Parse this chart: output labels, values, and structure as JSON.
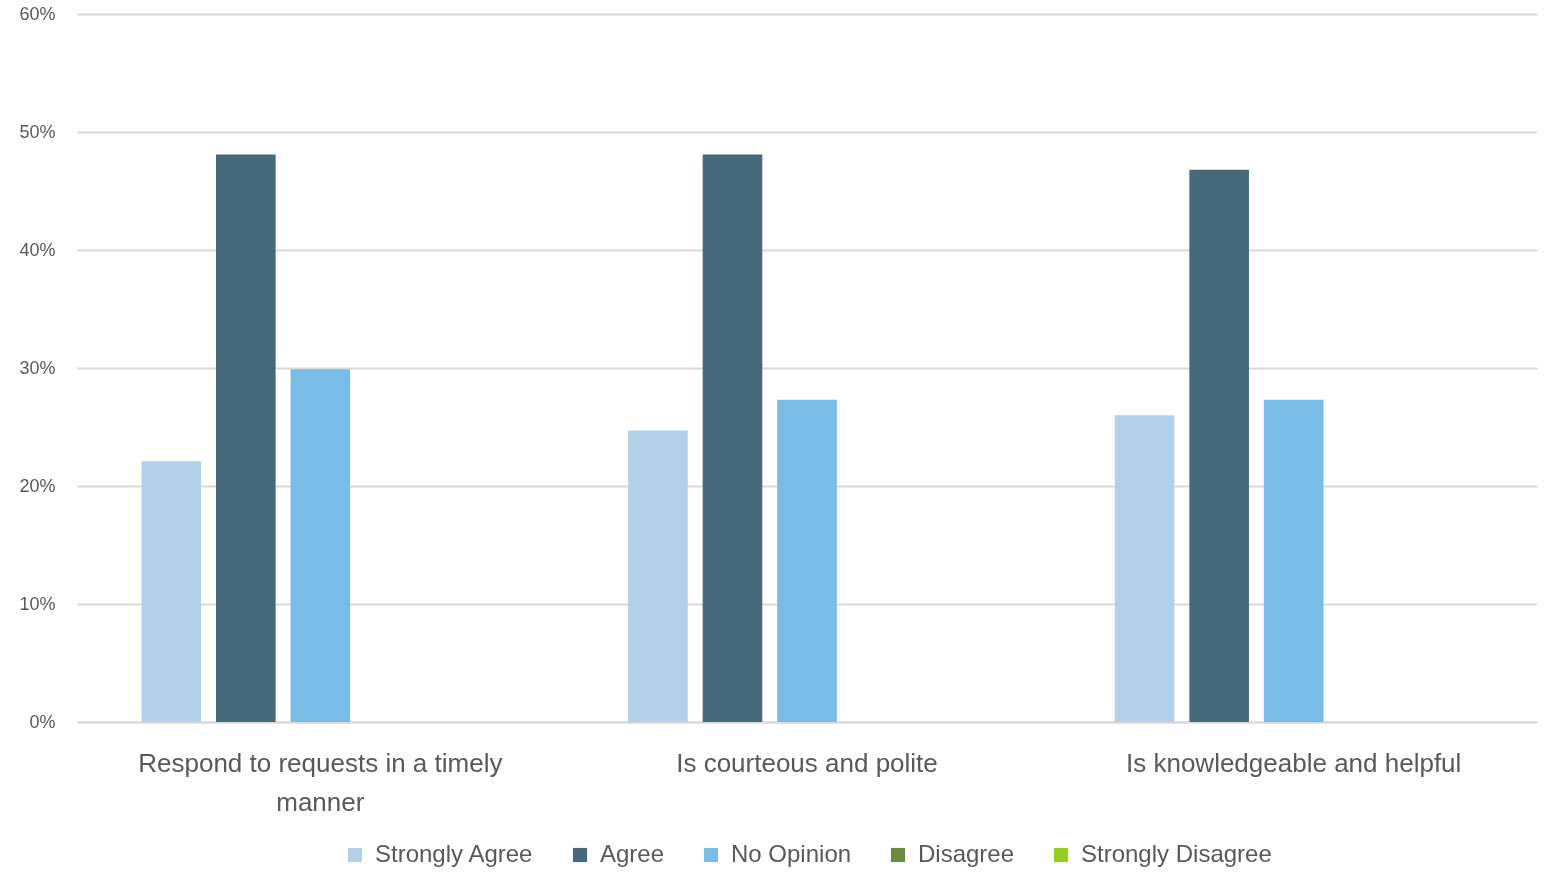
{
  "chart_data": {
    "type": "bar",
    "categories": [
      "Respond to requests in a timely manner",
      "Is courteous and polite",
      "Is knowledgeable and helpful"
    ],
    "series": [
      {
        "name": "Strongly Agree",
        "color": "#b4d0e8",
        "values": [
          22.1,
          24.7,
          26.0
        ]
      },
      {
        "name": "Agree",
        "color": "#466a7b",
        "values": [
          48.1,
          48.1,
          46.8
        ]
      },
      {
        "name": "No Opinion",
        "color": "#7abce8",
        "values": [
          29.9,
          27.3,
          27.3
        ]
      },
      {
        "name": "Disagree",
        "color": "#6b8a3e",
        "values": [
          0,
          0,
          0
        ]
      },
      {
        "name": "Strongly Disagree",
        "color": "#99cc22",
        "values": [
          0,
          0,
          0
        ]
      }
    ],
    "ylim": [
      0,
      60
    ],
    "yticks": [
      {
        "value": 0,
        "label": "0%"
      },
      {
        "value": 10,
        "label": "10%"
      },
      {
        "value": 20,
        "label": "20%"
      },
      {
        "value": 30,
        "label": "30%"
      },
      {
        "value": 40,
        "label": "40%"
      },
      {
        "value": 50,
        "label": "50%"
      },
      {
        "value": 60,
        "label": "60%"
      }
    ],
    "grid": "y",
    "legend": "bottom"
  }
}
